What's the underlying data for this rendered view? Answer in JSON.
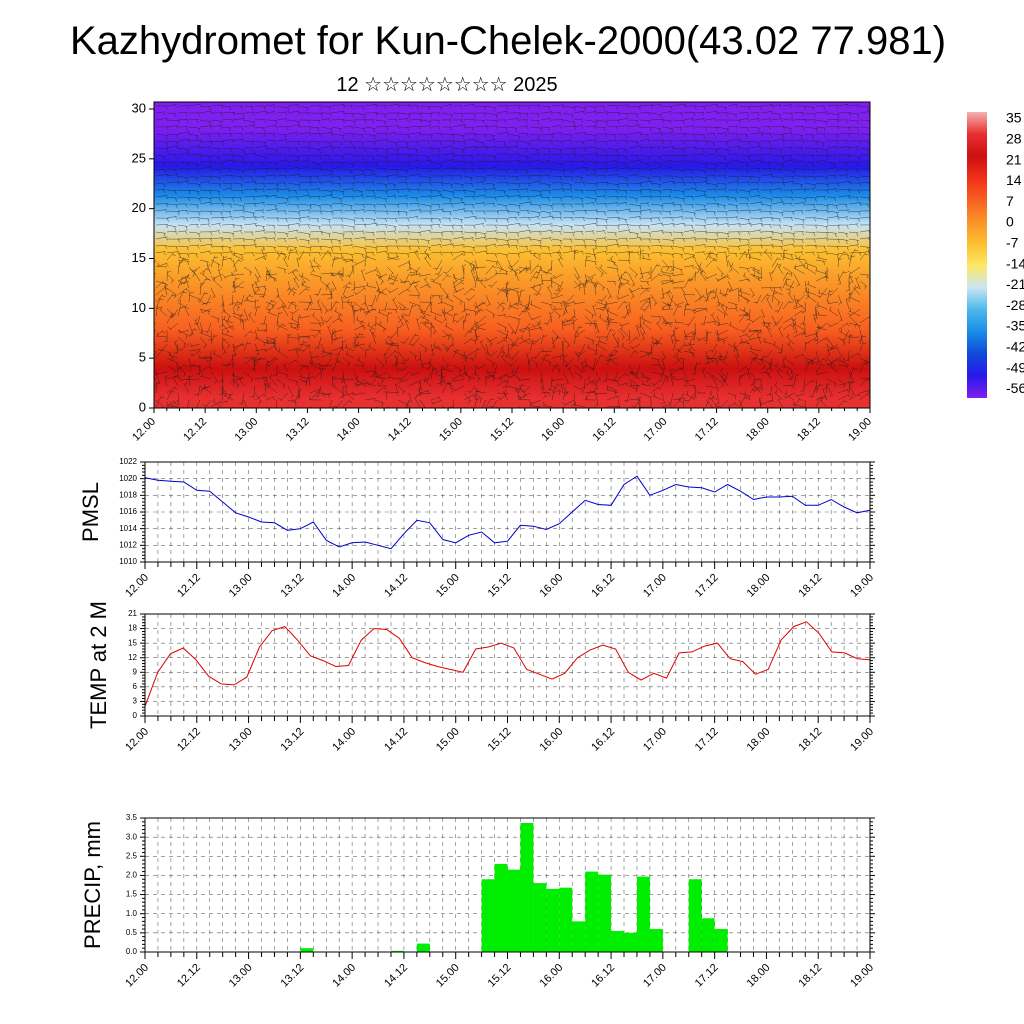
{
  "title": "Kazhydromet for Kun-Chelek-2000(43.02 77.981)",
  "subtitle": "12 ☆☆☆☆☆☆☆☆ 2025",
  "colorbar": {
    "labels": [
      "35",
      "28",
      "21",
      "14",
      "7",
      "0",
      "-7",
      "-14",
      "-21",
      "-28",
      "-35",
      "-42",
      "-49",
      "-56"
    ],
    "colors": [
      "#f4b0b0",
      "#e83030",
      "#cc1010",
      "#f03018",
      "#f86020",
      "#fa9428",
      "#fcc030",
      "#fde868",
      "#c8e4f4",
      "#4ab8ec",
      "#1a8ce8",
      "#1048d8",
      "#2818e8",
      "#8020f0"
    ]
  },
  "chart_data": [
    {
      "type": "heatmap",
      "title": "",
      "ylabel": "",
      "ylim": [
        0,
        30
      ],
      "yticks": [
        "0",
        "5",
        "10",
        "15",
        "20",
        "25",
        "30"
      ],
      "xticks": [
        "12.00",
        "12.12",
        "13.00",
        "13.12",
        "14.00",
        "14.12",
        "15.00",
        "15.12",
        "16.00",
        "16.12",
        "17.00",
        "17.12",
        "18.00",
        "18.12",
        "19.00"
      ],
      "bands": [
        {
          "from": 0,
          "to": 2,
          "value": 28
        },
        {
          "from": 2,
          "to": 6,
          "value": 21
        },
        {
          "from": 6,
          "to": 10,
          "value": 10
        },
        {
          "from": 10,
          "to": 15,
          "value": 0
        },
        {
          "from": 15,
          "to": 17,
          "value": -10
        },
        {
          "from": 17,
          "to": 20,
          "value": -21
        },
        {
          "from": 20,
          "to": 23,
          "value": -35
        },
        {
          "from": 23,
          "to": 26,
          "value": -49
        },
        {
          "from": 26,
          "to": 31,
          "value": -56
        }
      ]
    },
    {
      "type": "line",
      "ylabel": "PMSL",
      "ylim": [
        1010,
        1022
      ],
      "yticks": [
        "1010",
        "1012",
        "1014",
        "1016",
        "1018",
        "1020",
        "1022"
      ],
      "xticks": [
        "12.00",
        "12.12",
        "13.00",
        "13.12",
        "14.00",
        "14.12",
        "15.00",
        "15.12",
        "16.00",
        "16.12",
        "17.00",
        "17.12",
        "18.00",
        "18.12",
        "19.00"
      ],
      "color": "#0000cc",
      "series": [
        {
          "values": [
            1020.1,
            1019.8,
            1019.7,
            1019.6,
            1018.6,
            1018.5,
            1017.2,
            1015.9,
            1015.4,
            1014.8,
            1014.7,
            1013.8,
            1014.0,
            1014.8,
            1012.6,
            1011.8,
            1012.3,
            1012.4,
            1012.0,
            1011.6,
            1013.4,
            1015.0,
            1014.7,
            1012.7,
            1012.3,
            1013.2,
            1013.6,
            1012.3,
            1012.5,
            1014.4,
            1014.3,
            1013.9,
            1014.6,
            1016.0,
            1017.4,
            1016.9,
            1016.8,
            1019.3,
            1020.3,
            1018.0,
            1018.6,
            1019.3,
            1019.0,
            1018.9,
            1018.4,
            1019.3,
            1018.5,
            1017.5,
            1017.8,
            1017.8,
            1017.9,
            1016.8,
            1016.8,
            1017.5,
            1016.6,
            1015.9,
            1016.2
          ]
        }
      ]
    },
    {
      "type": "line",
      "ylabel": "TEMP at 2 M",
      "ylim": [
        0,
        21
      ],
      "yticks": [
        "0",
        "3",
        "6",
        "9",
        "12",
        "15",
        "18",
        "21"
      ],
      "xticks": [
        "12.00",
        "12.12",
        "13.00",
        "13.12",
        "14.00",
        "14.12",
        "15.00",
        "15.12",
        "16.00",
        "16.12",
        "17.00",
        "17.12",
        "18.00",
        "18.12",
        "19.00"
      ],
      "color": "#dd0000",
      "series": [
        {
          "values": [
            2.0,
            9.0,
            12.8,
            14.0,
            11.6,
            8.2,
            6.6,
            6.4,
            8.0,
            14.2,
            17.6,
            18.4,
            15.6,
            12.4,
            11.4,
            10.2,
            10.4,
            15.6,
            18.0,
            17.8,
            16.0,
            12.0,
            11.0,
            10.2,
            9.6,
            9.0,
            13.8,
            14.2,
            15.0,
            14.0,
            9.6,
            8.6,
            7.6,
            8.8,
            12.0,
            13.6,
            14.6,
            13.8,
            9.0,
            7.4,
            8.8,
            7.8,
            13.0,
            13.2,
            14.4,
            15.0,
            11.8,
            11.2,
            8.6,
            9.6,
            15.6,
            18.4,
            19.4,
            17.0,
            13.2,
            13.0,
            11.8,
            11.6
          ]
        }
      ]
    },
    {
      "type": "bar",
      "ylabel": "PRECIP, mm",
      "ylim": [
        0,
        3.5
      ],
      "yticks": [
        "0.0",
        "0.5",
        "1.0",
        "1.5",
        "2.0",
        "2.5",
        "3.0",
        "3.5"
      ],
      "xticks": [
        "12.00",
        "12.12",
        "13.00",
        "13.12",
        "14.00",
        "14.12",
        "15.00",
        "15.12",
        "16.00",
        "16.12",
        "17.00",
        "17.12",
        "18.00",
        "18.12",
        "19.00"
      ],
      "color": "#00ee00",
      "values": [
        0,
        0,
        0,
        0,
        0,
        0,
        0,
        0,
        0,
        0,
        0,
        0,
        0.1,
        0,
        0,
        0,
        0,
        0,
        0,
        0.03,
        0,
        0.22,
        0,
        0,
        0,
        0,
        1.9,
        2.3,
        2.15,
        3.37,
        1.8,
        1.65,
        1.68,
        0.8,
        2.1,
        2.02,
        0.55,
        0.5,
        1.97,
        0.6,
        0,
        0,
        1.9,
        0.88,
        0.6,
        0,
        0,
        0,
        0,
        0,
        0,
        0,
        0,
        0,
        0,
        0,
        0
      ]
    }
  ]
}
